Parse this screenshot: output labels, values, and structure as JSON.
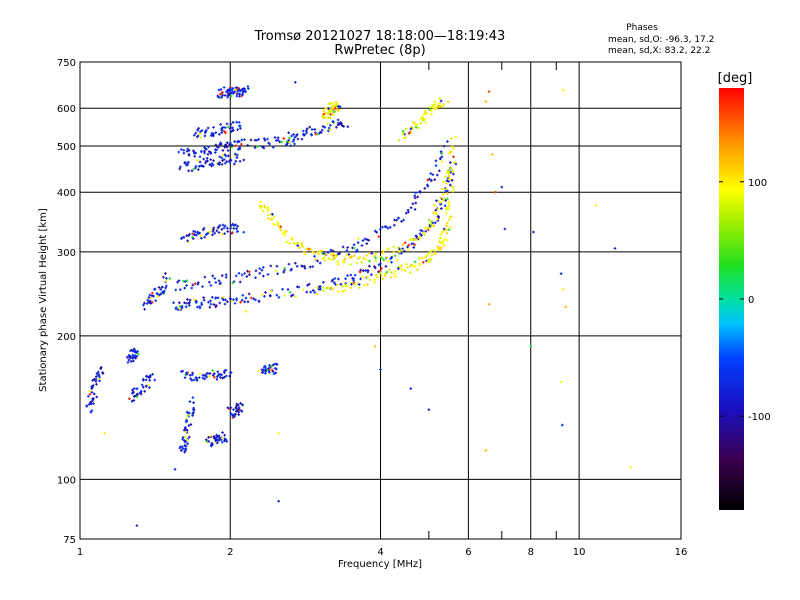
{
  "chart_data": {
    "type": "scatter",
    "title": "Tromsø 20121027 18:18:00—18:19:43",
    "subtitle": "RwPretec (8p)",
    "xlabel": "Frequency [MHz]",
    "ylabel": "Stationary phase Virtual Height [km]",
    "x_scale": "log",
    "y_scale": "log",
    "xlim": [
      1,
      16
    ],
    "ylim": [
      75,
      750
    ],
    "x_ticks": [
      "1",
      "2",
      "4",
      "6",
      "8",
      "10",
      "16"
    ],
    "y_ticks": [
      "75",
      "100",
      "200",
      "300",
      "400",
      "500",
      "600",
      "750"
    ],
    "grid": true,
    "phase_info": {
      "heading": "Phases",
      "line_o": "mean, sd,O: -96.3, 17.2",
      "line_x": "mean, sd,X: 83.2, 22.2"
    },
    "colorbar": {
      "label": "[deg]",
      "range": [
        -180,
        180
      ],
      "ticks": [
        "100",
        "0",
        "-100"
      ],
      "tick_values": [
        100,
        0,
        -100
      ]
    },
    "colors": {
      "o_mode": "#1a2ee6",
      "x_mode": "#e6e61a",
      "grid": "#000000"
    },
    "series": [
      {
        "mode": "O",
        "traces": [
          {
            "x": [
              1.55,
              1.6,
              1.7,
              1.8,
              1.9,
              2.0,
              2.2,
              2.4,
              2.7,
              3.0,
              3.3,
              3.6,
              3.9,
              4.2,
              4.5,
              4.8,
              5.1,
              5.3,
              5.5,
              5.6
            ],
            "y": [
              230,
              232,
              234,
              235,
              236,
              237,
              240,
              243,
              248,
              254,
              262,
              268,
              276,
              288,
              305,
              325,
              345,
              375,
              420,
              470
            ]
          },
          {
            "x": [
              1.55,
              1.7,
              1.9,
              2.1,
              2.3,
              2.6,
              2.9,
              3.2,
              3.5,
              3.8,
              4.2,
              4.6,
              4.9,
              5.2,
              5.4
            ],
            "y": [
              255,
              258,
              262,
              266,
              272,
              278,
              286,
              296,
              305,
              318,
              340,
              370,
              410,
              450,
              500
            ]
          },
          {
            "x": [
              1.35,
              1.4,
              1.45,
              1.5
            ],
            "y": [
              230,
              240,
              250,
              265
            ]
          },
          {
            "x": [
              1.6,
              1.7,
              1.8,
              1.9,
              2.0,
              2.1,
              2.3,
              2.5,
              2.7
            ],
            "y": [
              480,
              485,
              490,
              495,
              500,
              505,
              505,
              510,
              515
            ]
          },
          {
            "x": [
              1.6,
              1.7,
              1.8,
              1.9,
              2.0,
              2.1
            ],
            "y": [
              450,
              455,
              460,
              465,
              470,
              470
            ]
          },
          {
            "x": [
              1.7,
              1.8,
              1.9,
              2.0,
              2.1
            ],
            "y": [
              530,
              535,
              540,
              545,
              550
            ]
          },
          {
            "x": [
              2.6,
              2.8,
              3.0,
              3.2,
              3.4
            ],
            "y": [
              520,
              530,
              540,
              550,
              560
            ]
          },
          {
            "x": [
              1.9,
              1.95,
              2.0,
              2.05,
              2.1,
              2.15
            ],
            "y": [
              645,
              648,
              650,
              650,
              652,
              652
            ]
          },
          {
            "x": [
              1.6,
              1.7,
              1.8,
              1.9,
              2.0,
              2.1
            ],
            "y": [
              320,
              325,
              330,
              332,
              335,
              338
            ]
          },
          {
            "x": [
              1.6,
              1.62,
              1.64,
              1.66,
              1.68
            ],
            "y": [
              115,
              120,
              125,
              135,
              145
            ]
          },
          {
            "x": [
              1.6,
              1.7,
              1.8,
              1.9,
              2.0
            ],
            "y": [
              165,
              165,
              165,
              166,
              166
            ]
          },
          {
            "x": [
              1.8,
              1.85,
              1.9,
              1.95
            ],
            "y": [
              120,
              121,
              122,
              123
            ]
          },
          {
            "x": [
              1.04,
              1.06,
              1.08,
              1.1
            ],
            "y": [
              140,
              150,
              160,
              170
            ]
          },
          {
            "x": [
              1.25,
              1.28,
              1.3
            ],
            "y": [
              180,
              182,
              185
            ]
          },
          {
            "x": [
              2.3,
              2.4,
              2.5
            ],
            "y": [
              170,
              170,
              171
            ]
          },
          {
            "x": [
              2.0,
              2.05,
              2.1
            ],
            "y": [
              138,
              140,
              142
            ]
          },
          {
            "x": [
              1.27,
              1.3,
              1.35,
              1.4
            ],
            "y": [
              148,
              152,
              158,
              165
            ]
          }
        ]
      },
      {
        "mode": "X",
        "traces": [
          {
            "x": [
              3.0,
              3.3,
              3.6,
              3.9,
              4.2,
              4.5,
              4.8,
              5.0,
              5.2,
              5.35,
              5.45,
              5.5,
              5.55,
              5.6
            ],
            "y": [
              248,
              252,
              258,
              264,
              270,
              276,
              284,
              292,
              305,
              320,
              340,
              380,
              440,
              520
            ]
          },
          {
            "x": [
              2.3,
              2.4,
              2.5,
              2.6,
              2.8,
              3.0,
              3.2,
              3.4,
              3.7,
              4.0,
              4.4,
              4.8,
              5.1,
              5.3,
              5.5
            ],
            "y": [
              380,
              360,
              340,
              320,
              305,
              295,
              290,
              288,
              290,
              295,
              305,
              320,
              345,
              390,
              450
            ]
          },
          {
            "x": [
              3.1,
              3.15,
              3.2,
              3.25,
              3.3
            ],
            "y": [
              580,
              590,
              600,
              610,
              600
            ]
          },
          {
            "x": [
              4.4,
              4.6,
              4.8,
              5.0,
              5.2,
              5.4
            ],
            "y": [
              520,
              540,
              560,
              590,
              610,
              620
            ]
          }
        ]
      },
      {
        "mode": "scatter",
        "points": [
          {
            "x": 6.5,
            "y": 115,
            "phase": 120
          },
          {
            "x": 6.6,
            "y": 650,
            "phase": 160
          },
          {
            "x": 7.0,
            "y": 410,
            "phase": -100
          },
          {
            "x": 7.1,
            "y": 335,
            "phase": -100
          },
          {
            "x": 9.2,
            "y": 270,
            "phase": -100
          },
          {
            "x": 9.3,
            "y": 250,
            "phase": 100
          },
          {
            "x": 9.4,
            "y": 230,
            "phase": 120
          },
          {
            "x": 9.3,
            "y": 655,
            "phase": 100
          },
          {
            "x": 9.2,
            "y": 160,
            "phase": 90
          },
          {
            "x": 9.25,
            "y": 130,
            "phase": -100
          },
          {
            "x": 8.1,
            "y": 330,
            "phase": -100
          },
          {
            "x": 8.0,
            "y": 190,
            "phase": 20
          },
          {
            "x": 10.8,
            "y": 375,
            "phase": 100
          },
          {
            "x": 11.8,
            "y": 305,
            "phase": -100
          },
          {
            "x": 12.7,
            "y": 106,
            "phase": 100
          },
          {
            "x": 6.6,
            "y": 233,
            "phase": 130
          },
          {
            "x": 6.7,
            "y": 480,
            "phase": 120
          },
          {
            "x": 4.6,
            "y": 155,
            "phase": -100
          },
          {
            "x": 5.0,
            "y": 140,
            "phase": -100
          },
          {
            "x": 3.9,
            "y": 190,
            "phase": 120
          },
          {
            "x": 4.0,
            "y": 170,
            "phase": -100
          },
          {
            "x": 2.5,
            "y": 90,
            "phase": -100
          },
          {
            "x": 1.3,
            "y": 80,
            "phase": -100
          },
          {
            "x": 1.55,
            "y": 105,
            "phase": -100
          },
          {
            "x": 2.5,
            "y": 125,
            "phase": 100
          },
          {
            "x": 1.12,
            "y": 125,
            "phase": 100
          },
          {
            "x": 2.15,
            "y": 225,
            "phase": 100
          },
          {
            "x": 2.7,
            "y": 680,
            "phase": -100
          },
          {
            "x": 6.8,
            "y": 400,
            "phase": 160
          },
          {
            "x": 6.5,
            "y": 620,
            "phase": 120
          }
        ]
      }
    ]
  }
}
